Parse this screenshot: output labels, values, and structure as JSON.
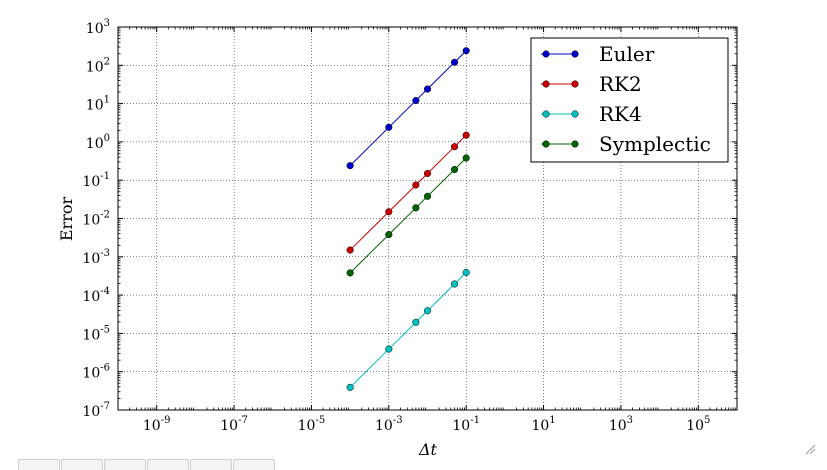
{
  "chart_data": {
    "type": "line",
    "xscale": "log",
    "yscale": "log",
    "xlabel": "Δt",
    "ylabel": "Error",
    "xlim": [
      1e-10,
      1000000.0
    ],
    "ylim": [
      1e-07,
      1000.0
    ],
    "grid": true,
    "legend_position": "top-right",
    "xticks": [
      {
        "value": 1e-09,
        "base": "10",
        "exp": "-9"
      },
      {
        "value": 1e-07,
        "base": "10",
        "exp": "-7"
      },
      {
        "value": 1e-05,
        "base": "10",
        "exp": "-5"
      },
      {
        "value": 0.001,
        "base": "10",
        "exp": "-3"
      },
      {
        "value": 0.1,
        "base": "10",
        "exp": "-1"
      },
      {
        "value": 10.0,
        "base": "10",
        "exp": "1"
      },
      {
        "value": 1000.0,
        "base": "10",
        "exp": "3"
      },
      {
        "value": 100000.0,
        "base": "10",
        "exp": "5"
      }
    ],
    "yticks": [
      {
        "value": 1e-07,
        "base": "10",
        "exp": "-7"
      },
      {
        "value": 1e-06,
        "base": "10",
        "exp": "-6"
      },
      {
        "value": 1e-05,
        "base": "10",
        "exp": "-5"
      },
      {
        "value": 0.0001,
        "base": "10",
        "exp": "-4"
      },
      {
        "value": 0.001,
        "base": "10",
        "exp": "-3"
      },
      {
        "value": 0.01,
        "base": "10",
        "exp": "-2"
      },
      {
        "value": 0.1,
        "base": "10",
        "exp": "-1"
      },
      {
        "value": 1.0,
        "base": "10",
        "exp": "0"
      },
      {
        "value": 10.0,
        "base": "10",
        "exp": "1"
      },
      {
        "value": 100.0,
        "base": "10",
        "exp": "2"
      },
      {
        "value": 1000.0,
        "base": "10",
        "exp": "3"
      }
    ],
    "x": [
      0.0001,
      0.001,
      0.005,
      0.01,
      0.05,
      0.1
    ],
    "series": [
      {
        "name": "Euler",
        "color": "#0000cc",
        "values": [
          0.24,
          2.4,
          12,
          24,
          120,
          240
        ]
      },
      {
        "name": "RK2",
        "color": "#cc0000",
        "values": [
          0.0015,
          0.015,
          0.075,
          0.15,
          0.75,
          1.5
        ]
      },
      {
        "name": "RK4",
        "color": "#00bfbf",
        "values": [
          3.9e-07,
          3.9e-06,
          1.95e-05,
          3.9e-05,
          0.000195,
          0.00039
        ]
      },
      {
        "name": "Symplectic",
        "color": "#006400",
        "values": [
          0.00038,
          0.0038,
          0.019,
          0.038,
          0.19,
          0.38
        ]
      }
    ]
  }
}
